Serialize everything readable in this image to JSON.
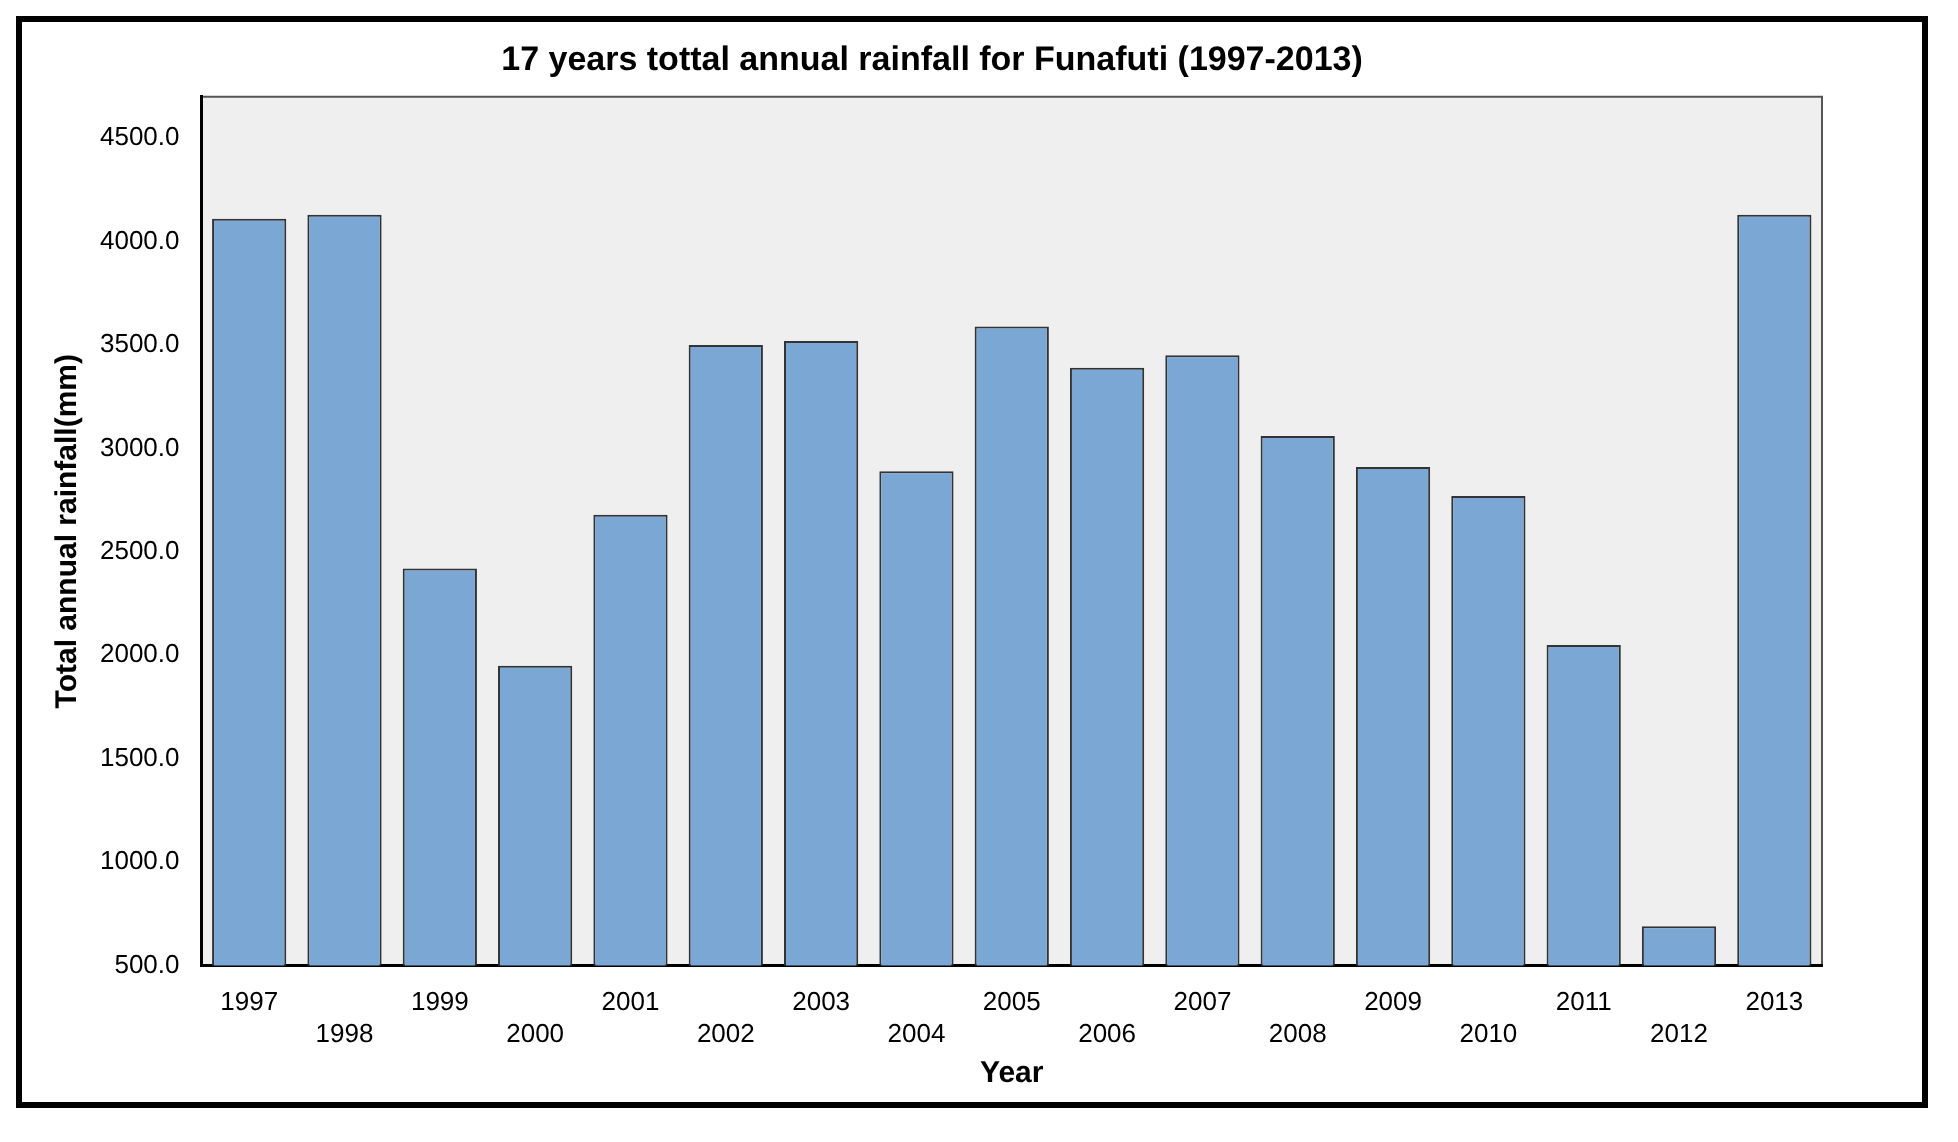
{
  "chart_data": {
    "type": "bar",
    "title": "17 years tottal annual rainfall for Funafuti (1997-2013)",
    "xlabel": "Year",
    "ylabel": "Total annual rainfall(mm)",
    "categories": [
      "1997",
      "1998",
      "1999",
      "2000",
      "2001",
      "2002",
      "2003",
      "2004",
      "2005",
      "2006",
      "2007",
      "2008",
      "2009",
      "2010",
      "2011",
      "2012",
      "2013"
    ],
    "values": [
      4110,
      4130,
      2420,
      1950,
      2680,
      3500,
      3520,
      2890,
      3590,
      3390,
      3450,
      3060,
      2910,
      2770,
      2050,
      690,
      4130
    ],
    "color": "#7ba7d5",
    "ylim": [
      500,
      4700
    ],
    "yticks": [
      {
        "value": 500,
        "label": "500.0"
      },
      {
        "value": 1000,
        "label": "1000.0"
      },
      {
        "value": 1500,
        "label": "1500.0"
      },
      {
        "value": 2000,
        "label": "2000.0"
      },
      {
        "value": 2500,
        "label": "2500.0"
      },
      {
        "value": 3000,
        "label": "3000.0"
      },
      {
        "value": 3500,
        "label": "3500.0"
      },
      {
        "value": 4000,
        "label": "4000.0"
      },
      {
        "value": 4500,
        "label": "4500.0"
      }
    ],
    "grid": false
  }
}
